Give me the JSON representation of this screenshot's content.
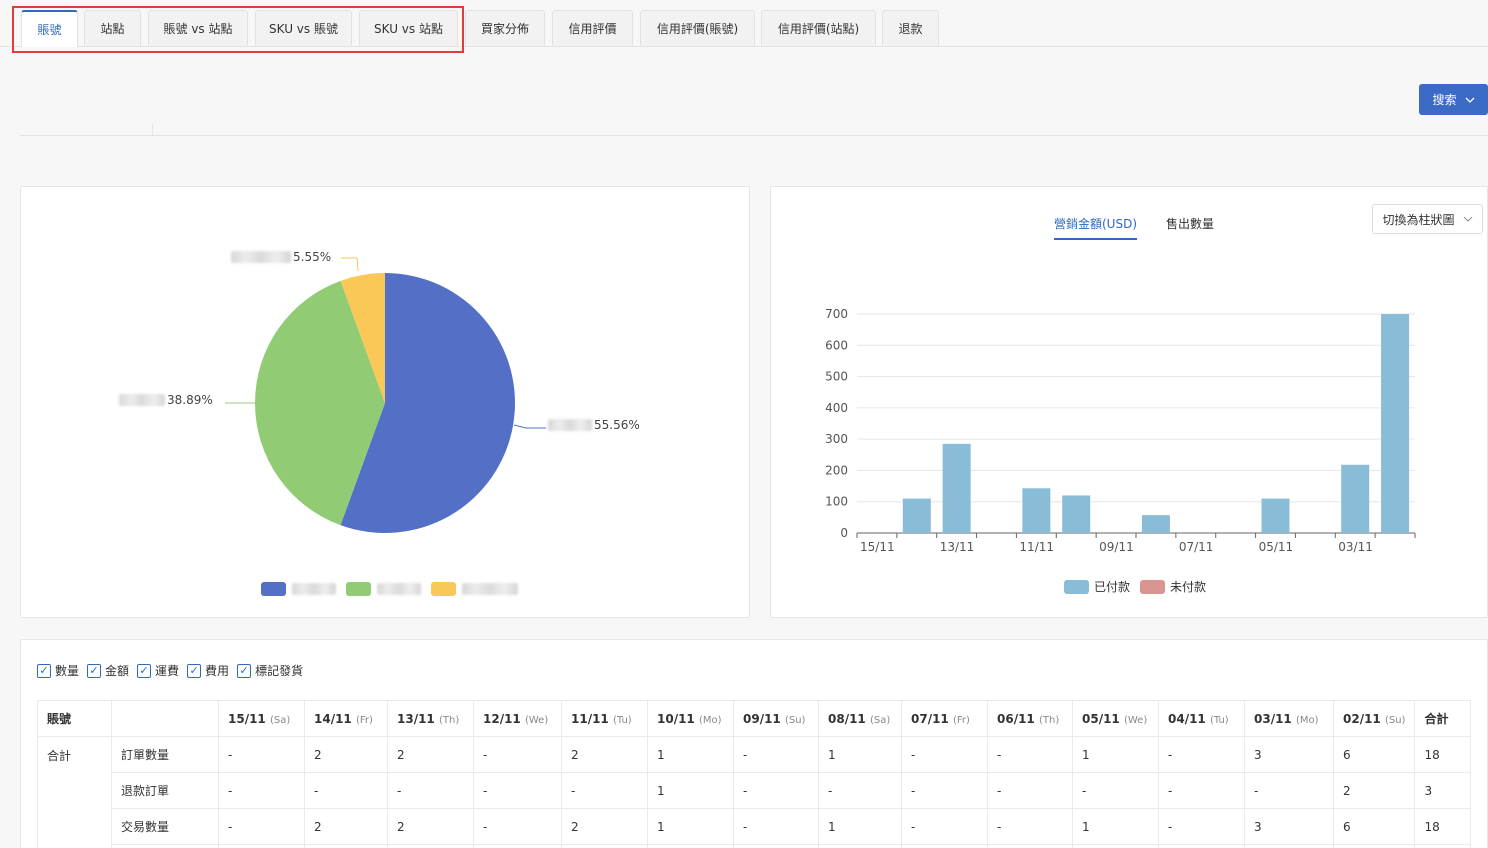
{
  "tabs": [
    {
      "label": "賬號",
      "active": true
    },
    {
      "label": "站點"
    },
    {
      "label": "賬號 vs 站點"
    },
    {
      "label": "SKU vs 賬號"
    },
    {
      "label": "SKU vs 站點"
    },
    {
      "label": "買家分佈"
    },
    {
      "label": "信用評價"
    },
    {
      "label": "信用評價(賬號)"
    },
    {
      "label": "信用評價(站點)"
    },
    {
      "label": "退款"
    }
  ],
  "search": {
    "label": "搜索"
  },
  "colors": {
    "accent": "#3b6bc6",
    "pie_blue": "#5470c6",
    "pie_green": "#91cc75",
    "pie_yellow": "#fac858",
    "bar_paid": "#89bcd6",
    "bar_unpaid": "#d99690"
  },
  "pie_chart": {
    "slices": [
      {
        "percent_label": "55.56%",
        "value": 55.56
      },
      {
        "percent_label": "38.89%",
        "value": 38.89
      },
      {
        "percent_label": "5.55%",
        "value": 5.55
      }
    ]
  },
  "bar_panel": {
    "tabs": [
      {
        "label": "營銷金額(USD)",
        "active": true
      },
      {
        "label": "售出數量"
      }
    ],
    "switch_label": "切換為柱狀圖",
    "legend": [
      "已付款",
      "未付款"
    ]
  },
  "chart_data": {
    "type": "bar",
    "categories": [
      "15/11",
      "14/11",
      "13/11",
      "12/11",
      "11/11",
      "10/11",
      "09/11",
      "08/11",
      "07/11",
      "06/11",
      "05/11",
      "04/11",
      "03/11",
      "02/11"
    ],
    "tick_labels": [
      "15/11",
      "13/11",
      "11/11",
      "09/11",
      "07/11",
      "05/11",
      "03/11"
    ],
    "series": [
      {
        "name": "已付款",
        "values": [
          0,
          110,
          285,
          0,
          143,
          120,
          0,
          57,
          0,
          0,
          110,
          0,
          218,
          700
        ]
      },
      {
        "name": "未付款",
        "values": [
          0,
          0,
          0,
          0,
          0,
          0,
          0,
          0,
          0,
          0,
          0,
          0,
          0,
          0
        ]
      }
    ],
    "yticks": [
      0,
      100,
      200,
      300,
      400,
      500,
      600,
      700
    ],
    "ylim": [
      0,
      700
    ]
  },
  "checkboxes": [
    "數量",
    "金額",
    "運費",
    "費用",
    "標記發貨"
  ],
  "table": {
    "header_first": "賬號",
    "header_last": "合計",
    "dates": [
      {
        "d": "15/11",
        "w": "(Sa)"
      },
      {
        "d": "14/11",
        "w": "(Fr)"
      },
      {
        "d": "13/11",
        "w": "(Th)"
      },
      {
        "d": "12/11",
        "w": "(We)"
      },
      {
        "d": "11/11",
        "w": "(Tu)"
      },
      {
        "d": "10/11",
        "w": "(Mo)"
      },
      {
        "d": "09/11",
        "w": "(Su)"
      },
      {
        "d": "08/11",
        "w": "(Sa)"
      },
      {
        "d": "07/11",
        "w": "(Fr)"
      },
      {
        "d": "06/11",
        "w": "(Th)"
      },
      {
        "d": "05/11",
        "w": "(We)"
      },
      {
        "d": "04/11",
        "w": "(Tu)"
      },
      {
        "d": "03/11",
        "w": "(Mo)"
      },
      {
        "d": "02/11",
        "w": "(Su)"
      }
    ],
    "group_name": "合計",
    "rows": [
      {
        "label": "訂單數量",
        "cells": [
          "-",
          "2",
          "2",
          "-",
          "2",
          "1",
          "-",
          "1",
          "-",
          "-",
          "1",
          "-",
          "3",
          "6",
          "18"
        ]
      },
      {
        "label": "退款訂單",
        "cells": [
          "-",
          "-",
          "-",
          "-",
          "-",
          "1",
          "-",
          "-",
          "-",
          "-",
          "-",
          "-",
          "-",
          "2",
          "3"
        ]
      },
      {
        "label": "交易數量",
        "cells": [
          "-",
          "2",
          "2",
          "-",
          "2",
          "1",
          "-",
          "1",
          "-",
          "-",
          "1",
          "-",
          "3",
          "6",
          "18"
        ]
      },
      {
        "label": "",
        "cells": [
          "",
          "",
          "",
          "",
          "",
          "",
          "",
          "",
          "",
          "",
          "",
          "",
          "",
          "",
          ""
        ]
      }
    ]
  }
}
